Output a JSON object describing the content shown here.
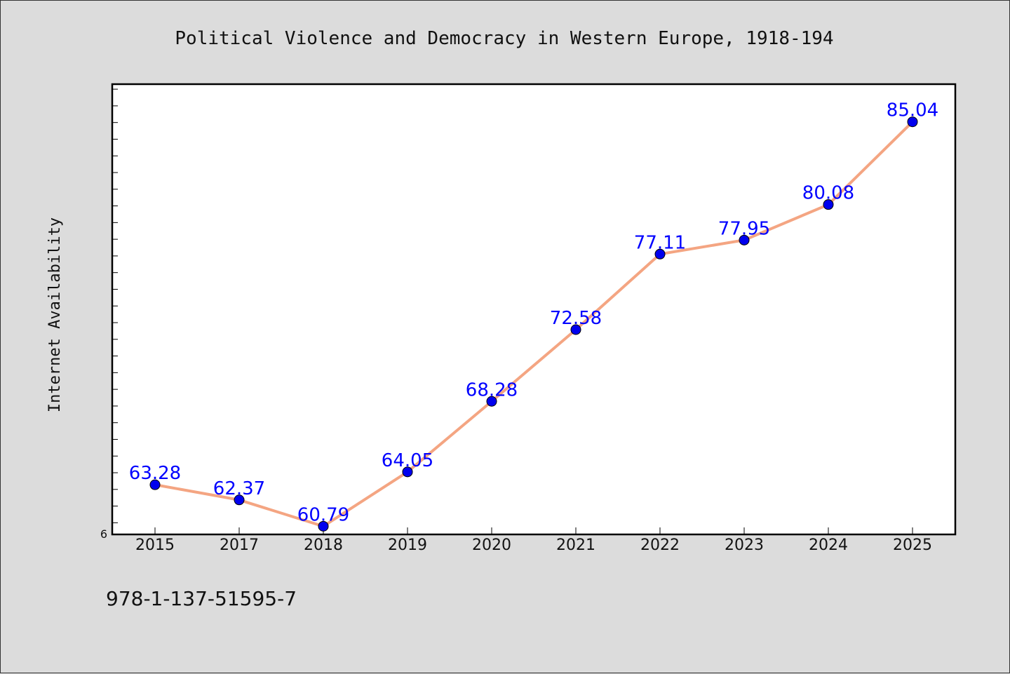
{
  "chart_data": {
    "type": "line",
    "title": "Political Violence and Democracy in Western Europe, 1918-194",
    "xlabel": "",
    "ylabel": "Internet Availability",
    "categories": [
      "2015",
      "2017",
      "2018",
      "2019",
      "2020",
      "2021",
      "2022",
      "2023",
      "2024",
      "2025"
    ],
    "series": [
      {
        "values": [
          63.28,
          62.37,
          60.79,
          64.05,
          68.28,
          72.58,
          77.11,
          77.95,
          80.08,
          85.04
        ],
        "labels": [
          "63.28",
          "62.37",
          "60.79",
          "64.05",
          "68.28",
          "72.58",
          "77.11",
          "77.95",
          "80.08",
          "85.04"
        ]
      }
    ],
    "y_tick_labels": [
      "6"
    ],
    "ylim": [
      60.3,
      87.3
    ],
    "grid": false,
    "legend": "none",
    "colors": {
      "line": "#f4a582",
      "marker": "#0000ee",
      "data_label": "#0000ff",
      "background": "#dcdcdc",
      "plot_background": "#ffffff"
    }
  },
  "footer": {
    "text": "978-1-137-51595-7"
  }
}
